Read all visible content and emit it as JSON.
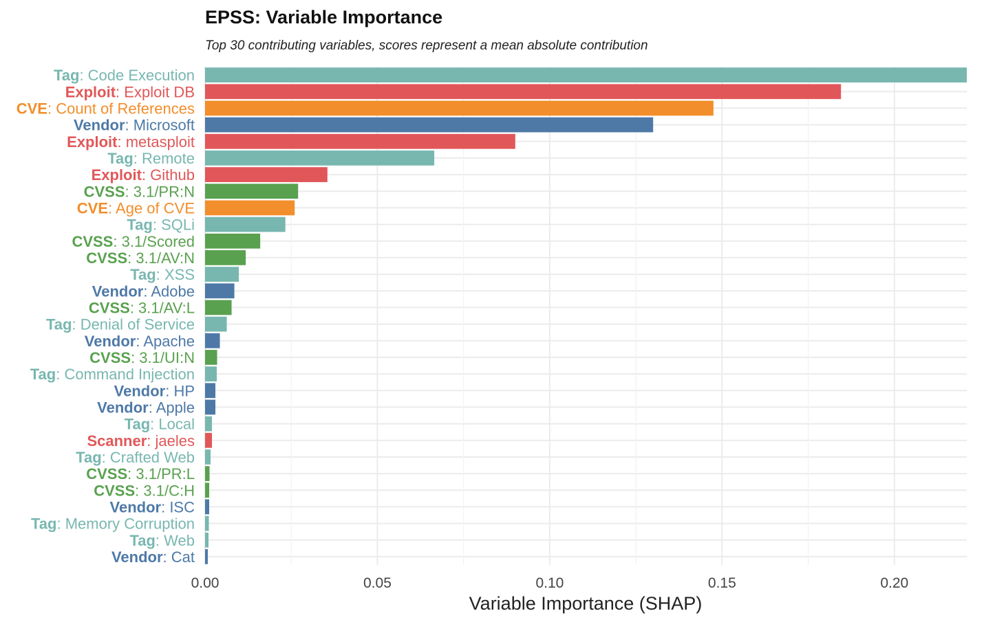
{
  "chart_data": {
    "type": "bar",
    "orientation": "horizontal",
    "title": "EPSS: Variable Importance",
    "subtitle": "Top 30 contributing variables, scores represent a mean absolute contribution",
    "xlabel": "Variable Importance (SHAP)",
    "ylabel": "",
    "xlim": [
      0,
      0.221
    ],
    "xticks": [
      0.0,
      0.05,
      0.1,
      0.15,
      0.2
    ],
    "xtick_labels": [
      "0.00",
      "0.05",
      "0.10",
      "0.15",
      "0.20"
    ],
    "grid": true,
    "legend": "none",
    "category_colors": {
      "Tag": "#78b7b0",
      "Exploit": "#e15759",
      "CVE": "#f28e2b",
      "Vendor": "#4e79a7",
      "CVSS": "#59a14f",
      "Scanner": "#e15759"
    },
    "bars": [
      {
        "group": "Tag",
        "name": "Code Execution",
        "value": 0.221
      },
      {
        "group": "Exploit",
        "name": "Exploit DB",
        "value": 0.1845
      },
      {
        "group": "CVE",
        "name": "Count of References",
        "value": 0.1475
      },
      {
        "group": "Vendor",
        "name": "Microsoft",
        "value": 0.13
      },
      {
        "group": "Exploit",
        "name": "metasploit",
        "value": 0.09
      },
      {
        "group": "Tag",
        "name": "Remote",
        "value": 0.0665
      },
      {
        "group": "Exploit",
        "name": "Github",
        "value": 0.0355
      },
      {
        "group": "CVSS",
        "name": "3.1/PR:N",
        "value": 0.027
      },
      {
        "group": "CVE",
        "name": "Age of CVE",
        "value": 0.026
      },
      {
        "group": "Tag",
        "name": "SQLi",
        "value": 0.0233
      },
      {
        "group": "CVSS",
        "name": "3.1/Scored",
        "value": 0.016
      },
      {
        "group": "CVSS",
        "name": "3.1/AV:N",
        "value": 0.0118
      },
      {
        "group": "Tag",
        "name": "XSS",
        "value": 0.0098
      },
      {
        "group": "Vendor",
        "name": "Adobe",
        "value": 0.0085
      },
      {
        "group": "CVSS",
        "name": "3.1/AV:L",
        "value": 0.0077
      },
      {
        "group": "Tag",
        "name": "Denial of Service",
        "value": 0.0063
      },
      {
        "group": "Vendor",
        "name": "Apache",
        "value": 0.0043
      },
      {
        "group": "CVSS",
        "name": "3.1/UI:N",
        "value": 0.0035
      },
      {
        "group": "Tag",
        "name": "Command Injection",
        "value": 0.0034
      },
      {
        "group": "Vendor",
        "name": "HP",
        "value": 0.003
      },
      {
        "group": "Vendor",
        "name": "Apple",
        "value": 0.003
      },
      {
        "group": "Tag",
        "name": "Local",
        "value": 0.002
      },
      {
        "group": "Scanner",
        "name": "jaeles",
        "value": 0.002
      },
      {
        "group": "Tag",
        "name": "Crafted Web",
        "value": 0.0016
      },
      {
        "group": "CVSS",
        "name": "3.1/PR:L",
        "value": 0.0013
      },
      {
        "group": "CVSS",
        "name": "3.1/C:H",
        "value": 0.0012
      },
      {
        "group": "Vendor",
        "name": "ISC",
        "value": 0.0012
      },
      {
        "group": "Tag",
        "name": "Memory Corruption",
        "value": 0.0011
      },
      {
        "group": "Tag",
        "name": "Web",
        "value": 0.001
      },
      {
        "group": "Vendor",
        "name": "Cat",
        "value": 0.0008
      }
    ]
  }
}
